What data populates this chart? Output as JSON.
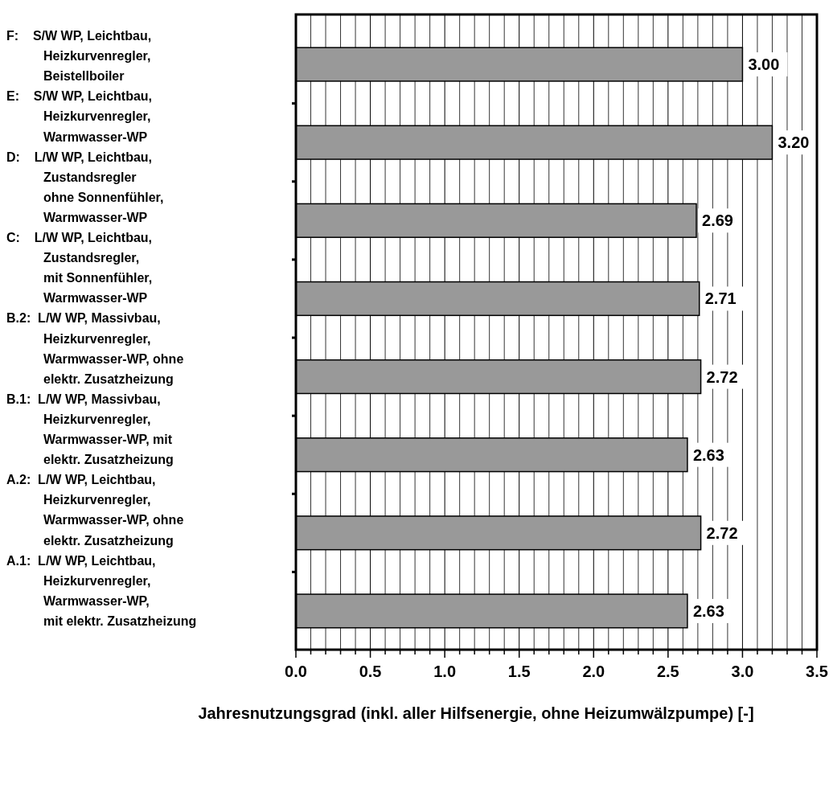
{
  "chart_data": {
    "type": "bar",
    "orientation": "horizontal",
    "categories": [
      "F:    S/W WP, Leichtbau,\nHeizkurvenregler,\nBeistellboiler",
      "E:    S/W WP, Leichtbau,\nHeizkurvenregler,\nWarmwasser-WP",
      "D:    L/W WP, Leichtbau,\nZustandsregler\nohne Sonnenfühler,\nWarmwasser-WP",
      "C:    L/W WP, Leichtbau,\nZustandsregler,\nmit Sonnenfühler,\nWarmwasser-WP",
      "B.2:  L/W WP, Massivbau,\nHeizkurvenregler,\nWarmwasser-WP, ohne\nelektr. Zusatzheizung",
      "B.1:  L/W WP, Massivbau,\nHeizkurvenregler,\nWarmwasser-WP, mit\nelektr. Zusatzheizung",
      "A.2:  L/W WP, Leichtbau,\nHeizkurvenregler,\nWarmwasser-WP, ohne\nelektr. Zusatzheizung",
      "A.1:  L/W WP, Leichtbau,\nHeizkurvenregler,\nWarmwasser-WP,\nmit elektr. Zusatzheizung"
    ],
    "values": [
      3.0,
      3.2,
      2.69,
      2.71,
      2.72,
      2.63,
      2.72,
      2.63
    ],
    "value_labels": [
      "3.00",
      "3.20",
      "2.69",
      "2.71",
      "2.72",
      "2.63",
      "2.72",
      "2.63"
    ],
    "color": "#999999",
    "xlim": [
      0,
      3.5
    ],
    "xticks": [
      {
        "value": 0,
        "label": "0.0"
      },
      {
        "value": 0.1,
        "label": null
      },
      {
        "value": 0.2,
        "label": null
      },
      {
        "value": 0.3,
        "label": null
      },
      {
        "value": 0.4,
        "label": null
      },
      {
        "value": 0.5,
        "label": "0.5"
      },
      {
        "value": 0.6,
        "label": null
      },
      {
        "value": 0.7,
        "label": null
      },
      {
        "value": 0.8,
        "label": null
      },
      {
        "value": 0.9,
        "label": null
      },
      {
        "value": 1,
        "label": "1.0"
      },
      {
        "value": 1.1,
        "label": null
      },
      {
        "value": 1.2,
        "label": null
      },
      {
        "value": 1.3,
        "label": null
      },
      {
        "value": 1.4,
        "label": null
      },
      {
        "value": 1.5,
        "label": "1.5"
      },
      {
        "value": 1.6,
        "label": null
      },
      {
        "value": 1.7,
        "label": null
      },
      {
        "value": 1.8,
        "label": null
      },
      {
        "value": 1.9,
        "label": null
      },
      {
        "value": 2,
        "label": "2.0"
      },
      {
        "value": 2.1,
        "label": null
      },
      {
        "value": 2.2,
        "label": null
      },
      {
        "value": 2.3,
        "label": null
      },
      {
        "value": 2.4,
        "label": null
      },
      {
        "value": 2.5,
        "label": "2.5"
      },
      {
        "value": 2.6,
        "label": null
      },
      {
        "value": 2.7,
        "label": null
      },
      {
        "value": 2.8,
        "label": null
      },
      {
        "value": 2.9,
        "label": null
      },
      {
        "value": 3,
        "label": "3.0"
      },
      {
        "value": 3.1,
        "label": null
      },
      {
        "value": 3.2,
        "label": null
      },
      {
        "value": 3.3,
        "label": null
      },
      {
        "value": 3.4,
        "label": null
      },
      {
        "value": 3.5,
        "label": "3.5"
      }
    ],
    "xlabel": "Jahresnutzungsgrad (inkl. aller Hilfsenergie, ohne Heizumwälzpumpe) [-]",
    "grid": "x"
  }
}
